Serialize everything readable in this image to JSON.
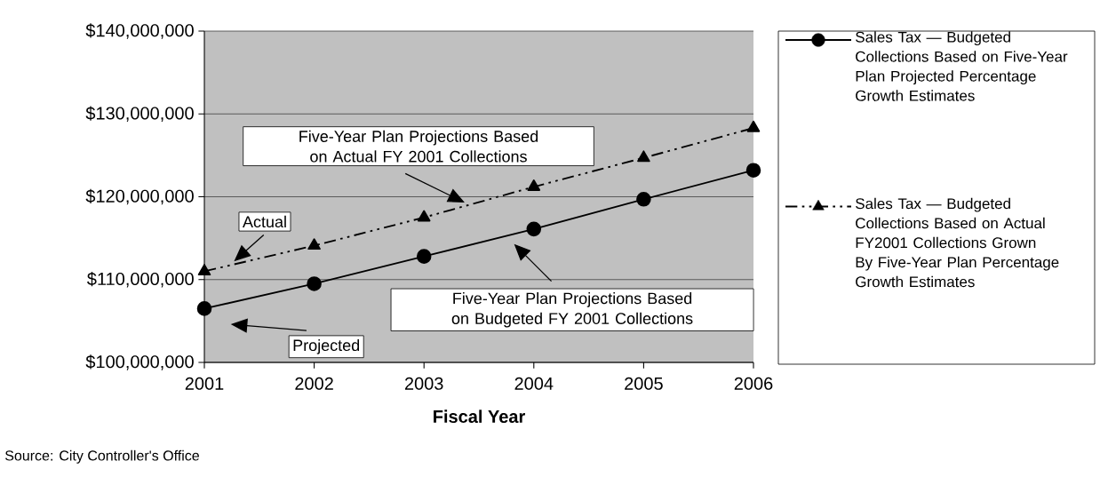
{
  "chart_data": {
    "type": "line",
    "xlabel": "Fiscal Year",
    "x": [
      2001,
      2002,
      2003,
      2004,
      2005,
      2006
    ],
    "xlim": [
      2001,
      2006
    ],
    "xticks": [
      2001,
      2002,
      2003,
      2004,
      2005,
      2006
    ],
    "ylim": [
      100000000,
      140000000
    ],
    "yticks": [
      {
        "value": 100000000,
        "label": "$100,000,000"
      },
      {
        "value": 110000000,
        "label": "$110,000,000"
      },
      {
        "value": 120000000,
        "label": "$120,000,000"
      },
      {
        "value": 130000000,
        "label": "$130,000,000"
      },
      {
        "value": 140000000,
        "label": "$140,000,000"
      }
    ],
    "grid": "y",
    "legend": "right",
    "series": [
      {
        "name": "Sales Tax — Budgeted Collections Based on Five-Year Plan Projected Percentage Growth Estimates",
        "color": "#000000",
        "marker": "circle",
        "line_style": "solid",
        "values": [
          106500000,
          109500000,
          112800000,
          116100000,
          119700000,
          123200000
        ]
      },
      {
        "name": "Sales Tax — Budgeted Collections Based on Actual FY2001 Collections Grown By Five-Year Plan Percentage Growth Estimates",
        "color": "#000000",
        "marker": "triangle",
        "line_style": "dashed",
        "values": [
          111000000,
          114100000,
          117500000,
          121200000,
          124700000,
          128300000
        ]
      }
    ],
    "annotations": [
      "Five-Year Plan Projections Based on Actual FY 2001 Collections",
      "Actual",
      "Five-Year Plan Projections Based on Budgeted FY 2001 Collections",
      "Projected",
      "Source:  City Controller's Office"
    ]
  }
}
